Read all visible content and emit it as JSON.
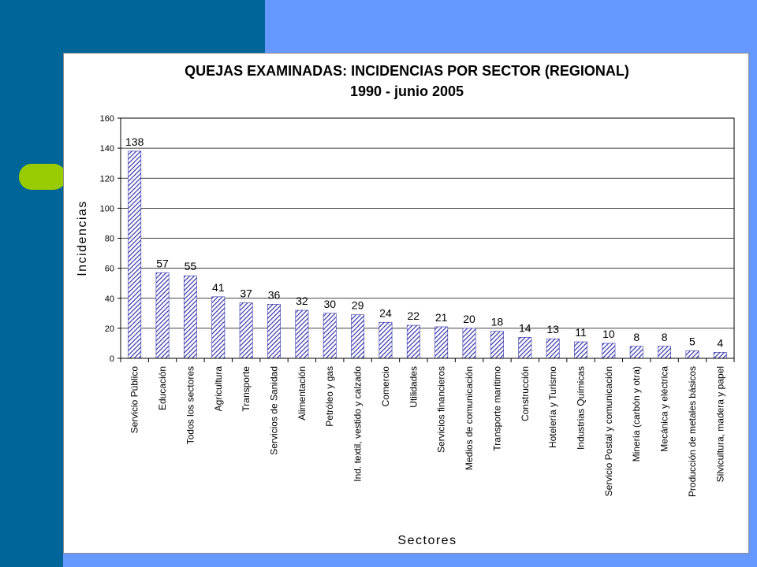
{
  "chart_data": {
    "type": "bar",
    "title": "QUEJAS EXAMINADAS: INCIDENCIAS POR SECTOR (REGIONAL)",
    "subtitle": "1990 - junio 2005",
    "xlabel": "Sectores",
    "ylabel": "Incidencias",
    "ylim": [
      0,
      160
    ],
    "yticks": [
      0,
      20,
      40,
      60,
      80,
      100,
      120,
      140,
      160
    ],
    "grid": true,
    "legend": "none",
    "bar_color": "#3333aa",
    "categories": [
      "Servicio Público",
      "Educación",
      "Todos los sectores",
      "Agricultura",
      "Transporte",
      "Servicios de Sanidad",
      "Alimentación",
      "Petróleo y gas",
      "Ind. textil, vestido y calzado",
      "Comercio",
      "Utilidades",
      "Servicios financieros",
      "Medios de comunicación",
      "Transporte marítimo",
      "Construcción",
      "Hotelería y Turismo",
      "Industrias Químicas",
      "Servicio Postal y comunicación",
      "Minería (carbón y otra)",
      "Mecánica y eléctrica",
      "Producción de metales básicos",
      "Silvicultura, madera y papel"
    ],
    "values": [
      138,
      57,
      55,
      41,
      37,
      36,
      32,
      30,
      29,
      24,
      22,
      21,
      20,
      18,
      14,
      13,
      11,
      10,
      8,
      8,
      5,
      4
    ]
  }
}
